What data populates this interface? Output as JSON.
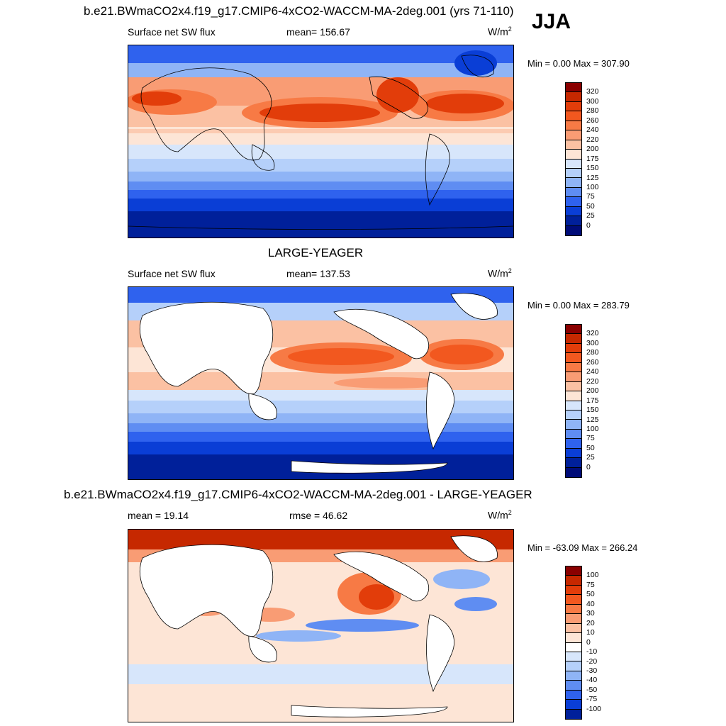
{
  "season_label": "JJA",
  "panels": [
    {
      "id": "model",
      "title": "b.e21.BWmaCO2x4.f19_g17.CMIP6-4xCO2-WACCM-MA-2deg.001 (yrs 71-110)",
      "left_label": "Surface net SW flux",
      "center_label": "mean= 156.67",
      "units_base": "W/m",
      "units_exp": "2",
      "minmax": "Min =   0.00 Max = 307.90",
      "colorbar_labels": [
        "320",
        "300",
        "280",
        "260",
        "240",
        "220",
        "200",
        "175",
        "150",
        "125",
        "100",
        "75",
        "50",
        "25",
        "0"
      ],
      "colorbar_colors": [
        "#8a0000",
        "#c62800",
        "#e23d0a",
        "#f2581f",
        "#f77a45",
        "#f99c74",
        "#fbc1a3",
        "#fde5d6",
        "#d7e6fb",
        "#b5d0fa",
        "#8fb4f6",
        "#5f8df2",
        "#2f62ee",
        "#0a3ed6",
        "#00209a",
        "#000c78"
      ]
    },
    {
      "id": "obs",
      "title": "LARGE-YEAGER",
      "left_label": "Surface net SW flux",
      "center_label": "mean= 137.53",
      "units_base": "W/m",
      "units_exp": "2",
      "minmax": "Min =   0.00 Max = 283.79",
      "colorbar_labels": [
        "320",
        "300",
        "280",
        "260",
        "240",
        "220",
        "200",
        "175",
        "150",
        "125",
        "100",
        "75",
        "50",
        "25",
        "0"
      ],
      "colorbar_colors": [
        "#8a0000",
        "#c62800",
        "#e23d0a",
        "#f2581f",
        "#f77a45",
        "#f99c74",
        "#fbc1a3",
        "#fde5d6",
        "#d7e6fb",
        "#b5d0fa",
        "#8fb4f6",
        "#5f8df2",
        "#2f62ee",
        "#0a3ed6",
        "#00209a",
        "#000c78"
      ]
    },
    {
      "id": "diff",
      "title": "b.e21.BWmaCO2x4.f19_g17.CMIP6-4xCO2-WACCM-MA-2deg.001 - LARGE-YEAGER",
      "left_label": "mean =  19.14",
      "center_label": "rmse =  46.62",
      "units_base": "W/m",
      "units_exp": "2",
      "minmax": "Min = -63.09 Max = 266.24",
      "colorbar_labels": [
        "100",
        "75",
        "50",
        "40",
        "30",
        "20",
        "10",
        "0",
        "-10",
        "-20",
        "-30",
        "-40",
        "-50",
        "-75",
        "-100"
      ],
      "colorbar_colors": [
        "#8a0000",
        "#c62800",
        "#e23d0a",
        "#f2581f",
        "#f77a45",
        "#f99c74",
        "#fbc1a3",
        "#fde5d6",
        "#ffffff",
        "#d7e6fb",
        "#b5d0fa",
        "#8fb4f6",
        "#5f8df2",
        "#2f62ee",
        "#0a3ed6",
        "#00209a"
      ]
    }
  ]
}
